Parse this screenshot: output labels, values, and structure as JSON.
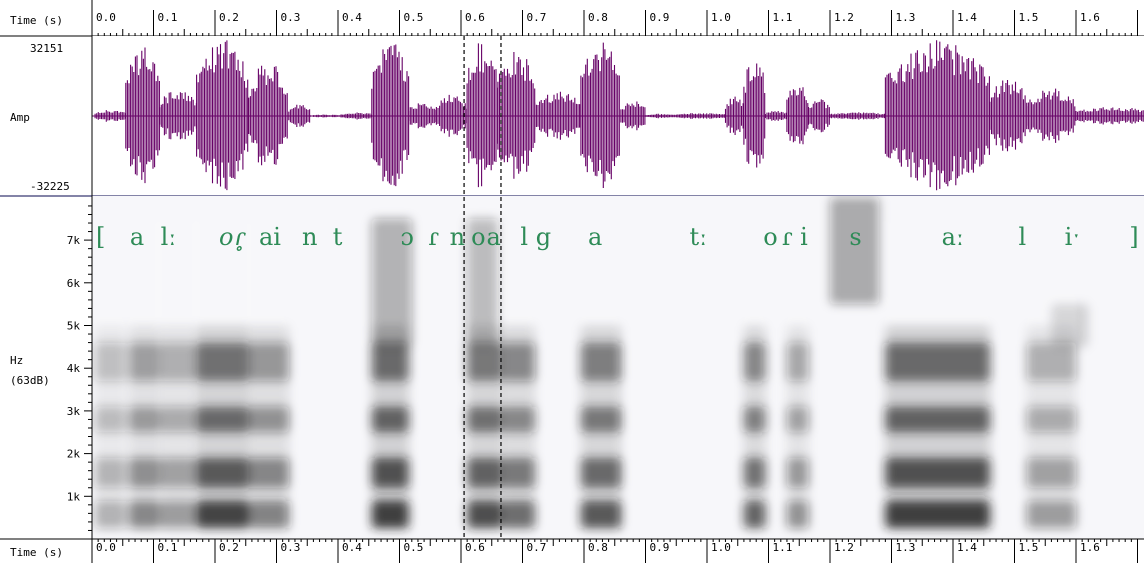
{
  "time_axis": {
    "label": "Time (s)",
    "ticks": [
      "0.0",
      "0.1",
      "0.2",
      "0.3",
      "0.4",
      "0.5",
      "0.6",
      "0.7",
      "0.8",
      "0.9",
      "1.0",
      "1.1",
      "1.2",
      "1.3",
      "1.4",
      "1.5",
      "1.6"
    ]
  },
  "waveform": {
    "label": "Amp",
    "max_label": "32151",
    "min_label": "-32225",
    "color": "#660066"
  },
  "spectrogram": {
    "unit_label": "Hz",
    "db_label": "(63dB)",
    "freq_ticks": [
      "7k",
      "6k",
      "5k",
      "4k",
      "3k",
      "2k",
      "1k"
    ]
  },
  "cursors": {
    "start_time": 0.605,
    "end_time": 0.665
  },
  "transcription": {
    "color": "#2e8b57",
    "segments": [
      {
        "text": "[",
        "time": 0.0,
        "italic": false
      },
      {
        "text": "a",
        "time": 0.055,
        "italic": false
      },
      {
        "text": "lː",
        "time": 0.105,
        "italic": false
      },
      {
        "text": "o",
        "time": 0.2,
        "italic": true
      },
      {
        "text": "ɾ̥",
        "time": 0.225,
        "italic": true
      },
      {
        "text": "ai",
        "time": 0.265,
        "italic": false
      },
      {
        "text": "n",
        "time": 0.335,
        "italic": false
      },
      {
        "text": "t",
        "time": 0.385,
        "italic": false
      },
      {
        "text": "ɔ",
        "time": 0.495,
        "italic": false
      },
      {
        "text": "ɾ",
        "time": 0.54,
        "italic": false
      },
      {
        "text": "n",
        "time": 0.575,
        "italic": false
      },
      {
        "text": "o",
        "time": 0.61,
        "italic": false
      },
      {
        "text": "a",
        "time": 0.635,
        "italic": false
      },
      {
        "text": "l",
        "time": 0.69,
        "italic": false
      },
      {
        "text": "g",
        "time": 0.715,
        "italic": false
      },
      {
        "text": "a",
        "time": 0.8,
        "italic": false
      },
      {
        "text": "tː",
        "time": 0.965,
        "italic": false
      },
      {
        "text": "o",
        "time": 1.085,
        "italic": false
      },
      {
        "text": "ɾ",
        "time": 1.115,
        "italic": false
      },
      {
        "text": "i",
        "time": 1.145,
        "italic": false
      },
      {
        "text": "s",
        "time": 1.225,
        "italic": false
      },
      {
        "text": "aː",
        "time": 1.375,
        "italic": false
      },
      {
        "text": "l",
        "time": 1.5,
        "italic": false
      },
      {
        "text": "iˑ",
        "time": 1.575,
        "italic": false
      },
      {
        "text": "]",
        "time": 1.68,
        "italic": false
      }
    ]
  }
}
